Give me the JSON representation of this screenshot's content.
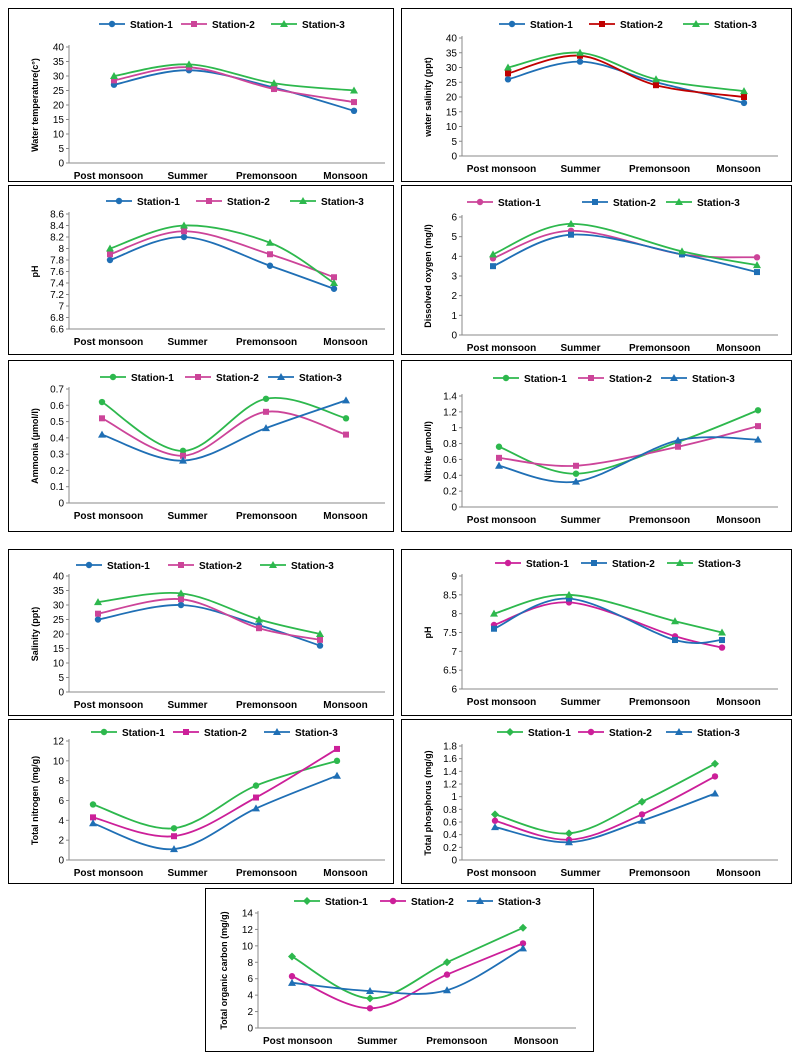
{
  "categories": [
    "Post monsoon",
    "Summer",
    "Premonsoon",
    "Monsoon"
  ],
  "chart_data": [
    {
      "type": "line",
      "ylabel": "Water temperature(c°)",
      "ylim": [
        0,
        40
      ],
      "ystep": 5,
      "series": [
        {
          "name": "Station-1",
          "values": [
            27,
            32,
            26,
            18
          ],
          "color": "#1f6fb5",
          "marker": "circle"
        },
        {
          "name": "Station-2",
          "values": [
            28.5,
            33,
            25.5,
            21
          ],
          "color": "#cc4499",
          "marker": "square"
        },
        {
          "name": "Station-3",
          "values": [
            30,
            34,
            27.5,
            25
          ],
          "color": "#2db84d",
          "marker": "triangle"
        }
      ]
    },
    {
      "type": "line",
      "ylabel": "water salinity (ppt)",
      "ylim": [
        0,
        40
      ],
      "ystep": 5,
      "series": [
        {
          "name": "Station-1",
          "values": [
            26,
            32,
            25,
            18
          ],
          "color": "#1f6fb5",
          "marker": "circle"
        },
        {
          "name": "Station-2",
          "values": [
            28,
            34,
            24,
            20
          ],
          "color": "#c00000",
          "marker": "square"
        },
        {
          "name": "Station-3",
          "values": [
            30,
            35,
            26,
            22
          ],
          "color": "#2db84d",
          "marker": "triangle"
        }
      ]
    },
    {
      "type": "line",
      "ylabel": "pH",
      "ylim": [
        6.6,
        8.6
      ],
      "ystep": 0.2,
      "series": [
        {
          "name": "Station-1",
          "values": [
            7.8,
            8.2,
            7.7,
            7.3
          ],
          "color": "#1f6fb5",
          "marker": "circle"
        },
        {
          "name": "Station-2",
          "values": [
            7.9,
            8.3,
            7.9,
            7.5
          ],
          "color": "#cc4499",
          "marker": "square"
        },
        {
          "name": "Station-3",
          "values": [
            8.0,
            8.4,
            8.1,
            7.4
          ],
          "color": "#2db84d",
          "marker": "triangle"
        }
      ]
    },
    {
      "type": "line",
      "ylabel": "Dissolved oxygen (mg/l)",
      "ylim": [
        0,
        6
      ],
      "ystep": 1,
      "series": [
        {
          "name": "Station-1",
          "values": [
            3.9,
            5.3,
            4.1,
            3.95
          ],
          "color": "#cc4499",
          "marker": "circle"
        },
        {
          "name": "Station-2",
          "values": [
            3.5,
            5.1,
            4.1,
            3.2
          ],
          "color": "#1f6fb5",
          "marker": "square"
        },
        {
          "name": "Station-3",
          "values": [
            4.1,
            5.65,
            4.25,
            3.55
          ],
          "color": "#2db84d",
          "marker": "triangle"
        }
      ]
    },
    {
      "type": "line",
      "ylabel": "Ammonia (µmol/l)",
      "ylim": [
        0,
        0.7
      ],
      "ystep": 0.1,
      "series": [
        {
          "name": "Station-1",
          "values": [
            0.62,
            0.32,
            0.64,
            0.52
          ],
          "color": "#2db84d",
          "marker": "circle"
        },
        {
          "name": "Station-2",
          "values": [
            0.52,
            0.29,
            0.56,
            0.42
          ],
          "color": "#cc4499",
          "marker": "square"
        },
        {
          "name": "Station-3",
          "values": [
            0.42,
            0.26,
            0.46,
            0.63
          ],
          "color": "#1f6fb5",
          "marker": "triangle"
        }
      ]
    },
    {
      "type": "line",
      "ylabel": "Nitrite (µmol/l)",
      "ylim": [
        0,
        1.4
      ],
      "ystep": 0.2,
      "series": [
        {
          "name": "Station-1",
          "values": [
            0.76,
            0.42,
            0.82,
            1.22
          ],
          "color": "#2db84d",
          "marker": "circle"
        },
        {
          "name": "Station-2",
          "values": [
            0.62,
            0.52,
            0.76,
            1.02
          ],
          "color": "#cc4499",
          "marker": "square"
        },
        {
          "name": "Station-3",
          "values": [
            0.52,
            0.32,
            0.84,
            0.85
          ],
          "color": "#1f6fb5",
          "marker": "triangle"
        }
      ]
    },
    {
      "type": "line",
      "ylabel": "Salinity (ppt)",
      "ylim": [
        0,
        40
      ],
      "ystep": 5,
      "series": [
        {
          "name": "Station-1",
          "values": [
            25,
            30,
            23,
            16
          ],
          "color": "#1f6fb5",
          "marker": "circle"
        },
        {
          "name": "Station-2",
          "values": [
            27,
            32,
            22,
            18
          ],
          "color": "#cc4499",
          "marker": "square"
        },
        {
          "name": "Station-3",
          "values": [
            31,
            34,
            25,
            20
          ],
          "color": "#2db84d",
          "marker": "triangle"
        }
      ]
    },
    {
      "type": "line",
      "ylabel": "pH",
      "ylim": [
        6,
        9
      ],
      "ystep": 0.5,
      "series": [
        {
          "name": "Station-1",
          "values": [
            7.7,
            8.3,
            7.4,
            7.1
          ],
          "color": "#cc1f99",
          "marker": "circle"
        },
        {
          "name": "Station-2",
          "values": [
            7.6,
            8.4,
            7.3,
            7.3
          ],
          "color": "#1f6fb5",
          "marker": "square"
        },
        {
          "name": "Station-3",
          "values": [
            8.0,
            8.5,
            7.8,
            7.5
          ],
          "color": "#2db84d",
          "marker": "triangle"
        }
      ]
    },
    {
      "type": "line",
      "ylabel": "Total nitrogen (mg/g)",
      "ylim": [
        0,
        12
      ],
      "ystep": 2,
      "series": [
        {
          "name": "Station-1",
          "values": [
            5.6,
            3.2,
            7.5,
            10
          ],
          "color": "#2db84d",
          "marker": "circle"
        },
        {
          "name": "Station-2",
          "values": [
            4.3,
            2.4,
            6.3,
            11.2
          ],
          "color": "#cc1f99",
          "marker": "square"
        },
        {
          "name": "Station-3",
          "values": [
            3.7,
            1.1,
            5.2,
            8.5
          ],
          "color": "#1f6fb5",
          "marker": "triangle"
        }
      ]
    },
    {
      "type": "line",
      "ylabel": "Total phosphorus (mg/g)",
      "ylim": [
        0,
        1.8
      ],
      "ystep": 0.2,
      "series": [
        {
          "name": "Station-1",
          "values": [
            0.72,
            0.42,
            0.92,
            1.52
          ],
          "color": "#2db84d",
          "marker": "diamond"
        },
        {
          "name": "Station-2",
          "values": [
            0.62,
            0.32,
            0.72,
            1.32
          ],
          "color": "#cc1f99",
          "marker": "circle"
        },
        {
          "name": "Station-3",
          "values": [
            0.52,
            0.28,
            0.62,
            1.05
          ],
          "color": "#1f6fb5",
          "marker": "triangle"
        }
      ]
    },
    {
      "type": "line",
      "ylabel": "Total organic carbon (mg/g)",
      "ylim": [
        0,
        14
      ],
      "ystep": 2,
      "series": [
        {
          "name": "Station-1",
          "values": [
            8.7,
            3.6,
            8,
            12.2
          ],
          "color": "#2db84d",
          "marker": "diamond"
        },
        {
          "name": "Station-2",
          "values": [
            6.3,
            2.4,
            6.5,
            10.3
          ],
          "color": "#cc1f99",
          "marker": "circle"
        },
        {
          "name": "Station-3",
          "values": [
            5.5,
            4.5,
            4.6,
            9.7
          ],
          "color": "#1f6fb5",
          "marker": "triangle"
        }
      ]
    }
  ]
}
